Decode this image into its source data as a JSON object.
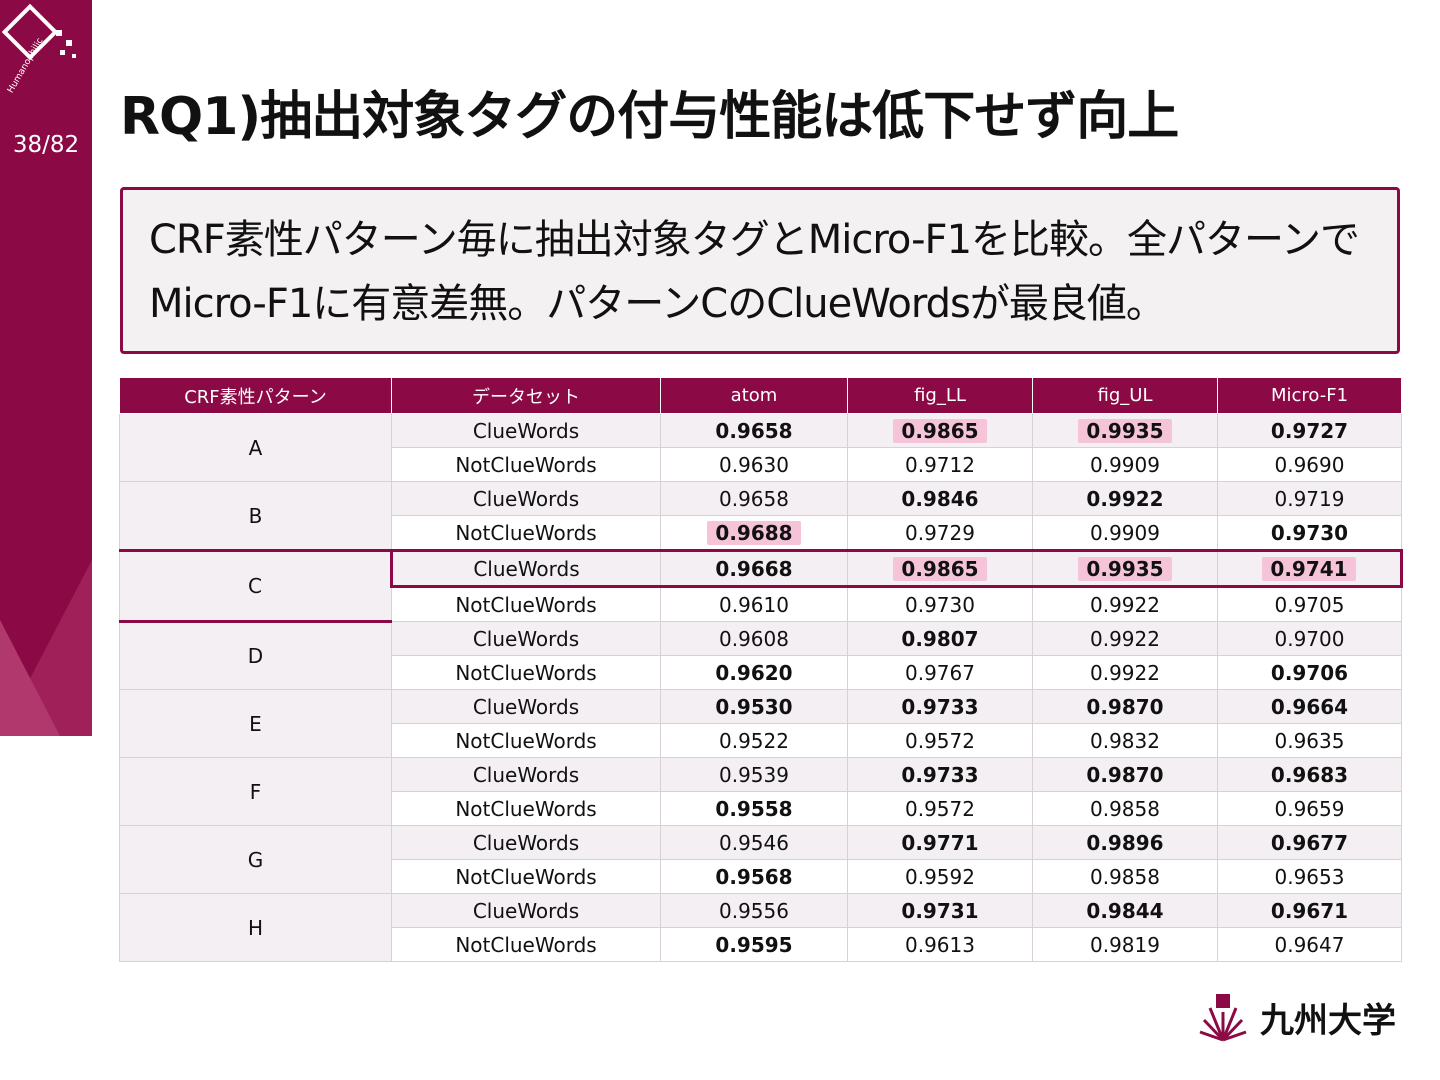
{
  "page_number": "38/82",
  "logo_text": "Humanophilic",
  "title": "RQ1)抽出対象タグの付与性能は低下せず向上",
  "summary": "CRF素性パターン毎に抽出対象タグとMicro-F1を比較。全パターンでMicro-F1に有意差無。パターンCのClueWordsが最良値。",
  "table": {
    "header": [
      "CRF素性パターン",
      "データセット",
      "atom",
      "fig_LL",
      "fig_UL",
      "Micro-F1"
    ],
    "groups": [
      {
        "pattern": "A",
        "rows": [
          {
            "dataset": "ClueWords",
            "values": [
              "0.9658",
              "0.9865",
              "0.9935",
              "0.9727"
            ],
            "bold": [
              true,
              true,
              true,
              true
            ],
            "highlight": [
              false,
              true,
              true,
              false
            ]
          },
          {
            "dataset": "NotClueWords",
            "values": [
              "0.9630",
              "0.9712",
              "0.9909",
              "0.9690"
            ],
            "bold": [
              false,
              false,
              false,
              false
            ],
            "highlight": [
              false,
              false,
              false,
              false
            ]
          }
        ]
      },
      {
        "pattern": "B",
        "rows": [
          {
            "dataset": "ClueWords",
            "values": [
              "0.9658",
              "0.9846",
              "0.9922",
              "0.9719"
            ],
            "bold": [
              false,
              true,
              true,
              false
            ],
            "highlight": [
              false,
              false,
              false,
              false
            ]
          },
          {
            "dataset": "NotClueWords",
            "values": [
              "0.9688",
              "0.9729",
              "0.9909",
              "0.9730"
            ],
            "bold": [
              true,
              false,
              false,
              true
            ],
            "highlight": [
              true,
              false,
              false,
              false
            ]
          }
        ]
      },
      {
        "pattern": "C",
        "rows": [
          {
            "dataset": "ClueWords",
            "values": [
              "0.9668",
              "0.9865",
              "0.9935",
              "0.9741"
            ],
            "bold": [
              true,
              true,
              true,
              true
            ],
            "highlight": [
              false,
              true,
              true,
              true
            ],
            "outlined": true
          },
          {
            "dataset": "NotClueWords",
            "values": [
              "0.9610",
              "0.9730",
              "0.9922",
              "0.9705"
            ],
            "bold": [
              false,
              false,
              false,
              false
            ],
            "highlight": [
              false,
              false,
              false,
              false
            ]
          }
        ]
      },
      {
        "pattern": "D",
        "rows": [
          {
            "dataset": "ClueWords",
            "values": [
              "0.9608",
              "0.9807",
              "0.9922",
              "0.9700"
            ],
            "bold": [
              false,
              true,
              false,
              false
            ],
            "highlight": [
              false,
              false,
              false,
              false
            ]
          },
          {
            "dataset": "NotClueWords",
            "values": [
              "0.9620",
              "0.9767",
              "0.9922",
              "0.9706"
            ],
            "bold": [
              true,
              false,
              false,
              true
            ],
            "highlight": [
              false,
              false,
              false,
              false
            ]
          }
        ]
      },
      {
        "pattern": "E",
        "rows": [
          {
            "dataset": "ClueWords",
            "values": [
              "0.9530",
              "0.9733",
              "0.9870",
              "0.9664"
            ],
            "bold": [
              true,
              true,
              true,
              true
            ],
            "highlight": [
              false,
              false,
              false,
              false
            ]
          },
          {
            "dataset": "NotClueWords",
            "values": [
              "0.9522",
              "0.9572",
              "0.9832",
              "0.9635"
            ],
            "bold": [
              false,
              false,
              false,
              false
            ],
            "highlight": [
              false,
              false,
              false,
              false
            ]
          }
        ]
      },
      {
        "pattern": "F",
        "rows": [
          {
            "dataset": "ClueWords",
            "values": [
              "0.9539",
              "0.9733",
              "0.9870",
              "0.9683"
            ],
            "bold": [
              false,
              true,
              true,
              true
            ],
            "highlight": [
              false,
              false,
              false,
              false
            ]
          },
          {
            "dataset": "NotClueWords",
            "values": [
              "0.9558",
              "0.9572",
              "0.9858",
              "0.9659"
            ],
            "bold": [
              true,
              false,
              false,
              false
            ],
            "highlight": [
              false,
              false,
              false,
              false
            ]
          }
        ]
      },
      {
        "pattern": "G",
        "rows": [
          {
            "dataset": "ClueWords",
            "values": [
              "0.9546",
              "0.9771",
              "0.9896",
              "0.9677"
            ],
            "bold": [
              false,
              true,
              true,
              true
            ],
            "highlight": [
              false,
              false,
              false,
              false
            ]
          },
          {
            "dataset": "NotClueWords",
            "values": [
              "0.9568",
              "0.9592",
              "0.9858",
              "0.9653"
            ],
            "bold": [
              true,
              false,
              false,
              false
            ],
            "highlight": [
              false,
              false,
              false,
              false
            ]
          }
        ]
      },
      {
        "pattern": "H",
        "rows": [
          {
            "dataset": "ClueWords",
            "values": [
              "0.9556",
              "0.9731",
              "0.9844",
              "0.9671"
            ],
            "bold": [
              false,
              true,
              true,
              true
            ],
            "highlight": [
              false,
              false,
              false,
              false
            ]
          },
          {
            "dataset": "NotClueWords",
            "values": [
              "0.9595",
              "0.9613",
              "0.9819",
              "0.9647"
            ],
            "bold": [
              true,
              false,
              false,
              false
            ],
            "highlight": [
              false,
              false,
              false,
              false
            ]
          }
        ]
      }
    ]
  },
  "university": "九州大学"
}
